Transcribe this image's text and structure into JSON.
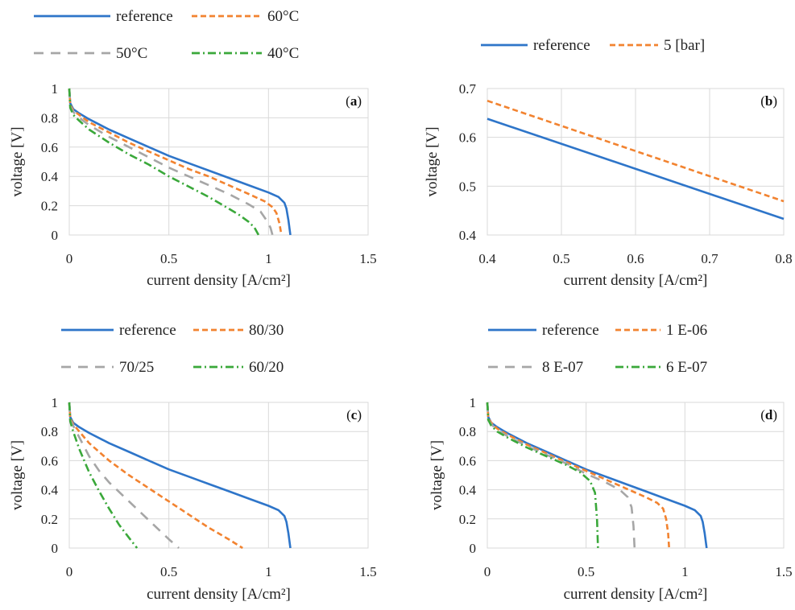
{
  "figure": {
    "colors": {
      "reference": "#2e75c9",
      "orange": "#f28330",
      "gray": "#a6a6a6",
      "green": "#3aa83a"
    }
  },
  "chart_data": [
    {
      "id": "a",
      "type": "line",
      "panel_label": "a",
      "xlabel": "current density [A/cm²]",
      "ylabel": "voltage [V]",
      "xlim": [
        0,
        1.5
      ],
      "ylim": [
        0,
        1
      ],
      "xticks": [
        "0",
        "0.5",
        "1",
        "1.5"
      ],
      "yticks": [
        "0",
        "0.2",
        "0.4",
        "0.6",
        "0.8",
        "1"
      ],
      "grid": true,
      "legend_position": "top",
      "series": [
        {
          "name": "reference",
          "style": "solid",
          "color": "#2e75c9",
          "x": [
            0,
            0.005,
            0.02,
            0.05,
            0.1,
            0.2,
            0.3,
            0.4,
            0.5,
            0.6,
            0.7,
            0.8,
            0.9,
            1.0,
            1.05,
            1.08,
            1.09,
            1.1,
            1.11
          ],
          "y": [
            1.0,
            0.9,
            0.86,
            0.83,
            0.79,
            0.72,
            0.66,
            0.6,
            0.54,
            0.49,
            0.44,
            0.39,
            0.34,
            0.29,
            0.26,
            0.22,
            0.18,
            0.1,
            0
          ]
        },
        {
          "name": "60°C",
          "style": "dash",
          "color": "#f28330",
          "x": [
            0,
            0.005,
            0.02,
            0.05,
            0.1,
            0.2,
            0.3,
            0.4,
            0.5,
            0.6,
            0.7,
            0.8,
            0.9,
            0.98,
            1.02,
            1.04,
            1.055,
            1.065
          ],
          "y": [
            1.0,
            0.89,
            0.85,
            0.82,
            0.77,
            0.7,
            0.63,
            0.57,
            0.51,
            0.45,
            0.4,
            0.34,
            0.28,
            0.23,
            0.19,
            0.15,
            0.08,
            0
          ]
        },
        {
          "name": "50°C",
          "style": "longdash",
          "color": "#a6a6a6",
          "x": [
            0,
            0.005,
            0.02,
            0.05,
            0.1,
            0.2,
            0.3,
            0.4,
            0.5,
            0.6,
            0.7,
            0.8,
            0.9,
            0.96,
            0.99,
            1.01,
            1.02
          ],
          "y": [
            1.0,
            0.88,
            0.84,
            0.8,
            0.75,
            0.67,
            0.6,
            0.53,
            0.46,
            0.4,
            0.34,
            0.28,
            0.21,
            0.16,
            0.1,
            0.05,
            0
          ]
        },
        {
          "name": "40°C",
          "style": "dashdot",
          "color": "#3aa83a",
          "x": [
            0,
            0.005,
            0.02,
            0.05,
            0.1,
            0.2,
            0.3,
            0.4,
            0.5,
            0.6,
            0.7,
            0.8,
            0.85,
            0.9,
            0.93,
            0.95
          ],
          "y": [
            1.0,
            0.87,
            0.82,
            0.78,
            0.72,
            0.63,
            0.55,
            0.48,
            0.4,
            0.33,
            0.26,
            0.18,
            0.14,
            0.09,
            0.05,
            0
          ]
        }
      ]
    },
    {
      "id": "b",
      "type": "line",
      "panel_label": "b",
      "xlabel": "current density [A/cm²]",
      "ylabel": "voltage [V]",
      "xlim": [
        0.4,
        0.8
      ],
      "ylim": [
        0.4,
        0.7
      ],
      "xticks": [
        "0.4",
        "0.5",
        "0.6",
        "0.7",
        "0.8"
      ],
      "yticks": [
        "0.4",
        "0.5",
        "0.6",
        "0.7"
      ],
      "grid": true,
      "legend_position": "top",
      "series": [
        {
          "name": "reference",
          "style": "solid",
          "color": "#2e75c9",
          "x": [
            0.4,
            0.8
          ],
          "y": [
            0.638,
            0.433
          ]
        },
        {
          "name": "5 [bar]",
          "style": "dash",
          "color": "#f28330",
          "x": [
            0.4,
            0.8
          ],
          "y": [
            0.675,
            0.469
          ]
        }
      ]
    },
    {
      "id": "c",
      "type": "line",
      "panel_label": "c",
      "xlabel": "current density [A/cm²]",
      "ylabel": "voltage [V]",
      "xlim": [
        0,
        1.5
      ],
      "ylim": [
        0,
        1
      ],
      "xticks": [
        "0",
        "0.5",
        "1",
        "1.5"
      ],
      "yticks": [
        "0",
        "0.2",
        "0.4",
        "0.6",
        "0.8",
        "1"
      ],
      "grid": true,
      "legend_position": "top",
      "series": [
        {
          "name": "reference",
          "style": "solid",
          "color": "#2e75c9",
          "x": [
            0,
            0.005,
            0.02,
            0.05,
            0.1,
            0.2,
            0.3,
            0.4,
            0.5,
            0.6,
            0.7,
            0.8,
            0.9,
            1.0,
            1.05,
            1.08,
            1.09,
            1.1,
            1.11
          ],
          "y": [
            1.0,
            0.9,
            0.86,
            0.83,
            0.79,
            0.72,
            0.66,
            0.6,
            0.54,
            0.49,
            0.44,
            0.39,
            0.34,
            0.29,
            0.26,
            0.22,
            0.18,
            0.1,
            0
          ]
        },
        {
          "name": "80/30",
          "style": "dash",
          "color": "#f28330",
          "x": [
            0,
            0.005,
            0.02,
            0.05,
            0.1,
            0.2,
            0.3,
            0.4,
            0.5,
            0.6,
            0.7,
            0.8,
            0.87
          ],
          "y": [
            1.0,
            0.89,
            0.85,
            0.8,
            0.72,
            0.6,
            0.5,
            0.41,
            0.32,
            0.23,
            0.14,
            0.06,
            0
          ]
        },
        {
          "name": "70/25",
          "style": "longdash",
          "color": "#a6a6a6",
          "x": [
            0,
            0.005,
            0.02,
            0.05,
            0.1,
            0.15,
            0.2,
            0.3,
            0.4,
            0.5,
            0.55
          ],
          "y": [
            1.0,
            0.88,
            0.84,
            0.76,
            0.63,
            0.53,
            0.45,
            0.32,
            0.19,
            0.06,
            0
          ]
        },
        {
          "name": "60/20",
          "style": "dashdot",
          "color": "#3aa83a",
          "x": [
            0,
            0.005,
            0.02,
            0.05,
            0.1,
            0.15,
            0.2,
            0.25,
            0.3,
            0.34
          ],
          "y": [
            1.0,
            0.87,
            0.8,
            0.68,
            0.52,
            0.39,
            0.27,
            0.16,
            0.07,
            0
          ]
        }
      ]
    },
    {
      "id": "d",
      "type": "line",
      "panel_label": "d",
      "xlabel": "current density [A/cm²]",
      "ylabel": "voltage [V]",
      "xlim": [
        0,
        1.5
      ],
      "ylim": [
        0,
        1
      ],
      "xticks": [
        "0",
        "0.5",
        "1",
        "1.5"
      ],
      "yticks": [
        "0",
        "0.2",
        "0.4",
        "0.6",
        "0.8",
        "1"
      ],
      "grid": true,
      "legend_position": "top",
      "series": [
        {
          "name": "reference",
          "style": "solid",
          "color": "#2e75c9",
          "x": [
            0,
            0.005,
            0.02,
            0.05,
            0.1,
            0.2,
            0.3,
            0.4,
            0.5,
            0.6,
            0.7,
            0.8,
            0.9,
            1.0,
            1.05,
            1.08,
            1.09,
            1.1,
            1.11
          ],
          "y": [
            1.0,
            0.9,
            0.86,
            0.83,
            0.79,
            0.72,
            0.66,
            0.6,
            0.54,
            0.49,
            0.44,
            0.39,
            0.34,
            0.29,
            0.26,
            0.22,
            0.18,
            0.1,
            0
          ]
        },
        {
          "name": "1 E-06",
          "style": "dash",
          "color": "#f28330",
          "x": [
            0,
            0.005,
            0.02,
            0.05,
            0.1,
            0.2,
            0.3,
            0.4,
            0.5,
            0.6,
            0.7,
            0.8,
            0.86,
            0.89,
            0.905,
            0.915,
            0.92
          ],
          "y": [
            1.0,
            0.89,
            0.86,
            0.82,
            0.78,
            0.71,
            0.65,
            0.59,
            0.53,
            0.47,
            0.41,
            0.35,
            0.31,
            0.27,
            0.2,
            0.1,
            0
          ]
        },
        {
          "name": "8 E-07",
          "style": "longdash",
          "color": "#a6a6a6",
          "x": [
            0,
            0.005,
            0.02,
            0.05,
            0.1,
            0.2,
            0.3,
            0.4,
            0.5,
            0.6,
            0.67,
            0.71,
            0.73,
            0.74,
            0.745
          ],
          "y": [
            1.0,
            0.88,
            0.85,
            0.81,
            0.77,
            0.7,
            0.64,
            0.58,
            0.51,
            0.45,
            0.4,
            0.35,
            0.28,
            0.15,
            0
          ]
        },
        {
          "name": "6 E-07",
          "style": "dashdot",
          "color": "#3aa83a",
          "x": [
            0,
            0.005,
            0.02,
            0.05,
            0.1,
            0.2,
            0.3,
            0.4,
            0.47,
            0.52,
            0.545,
            0.555,
            0.56
          ],
          "y": [
            1.0,
            0.88,
            0.84,
            0.8,
            0.76,
            0.69,
            0.63,
            0.57,
            0.52,
            0.46,
            0.38,
            0.2,
            0
          ]
        }
      ]
    }
  ]
}
